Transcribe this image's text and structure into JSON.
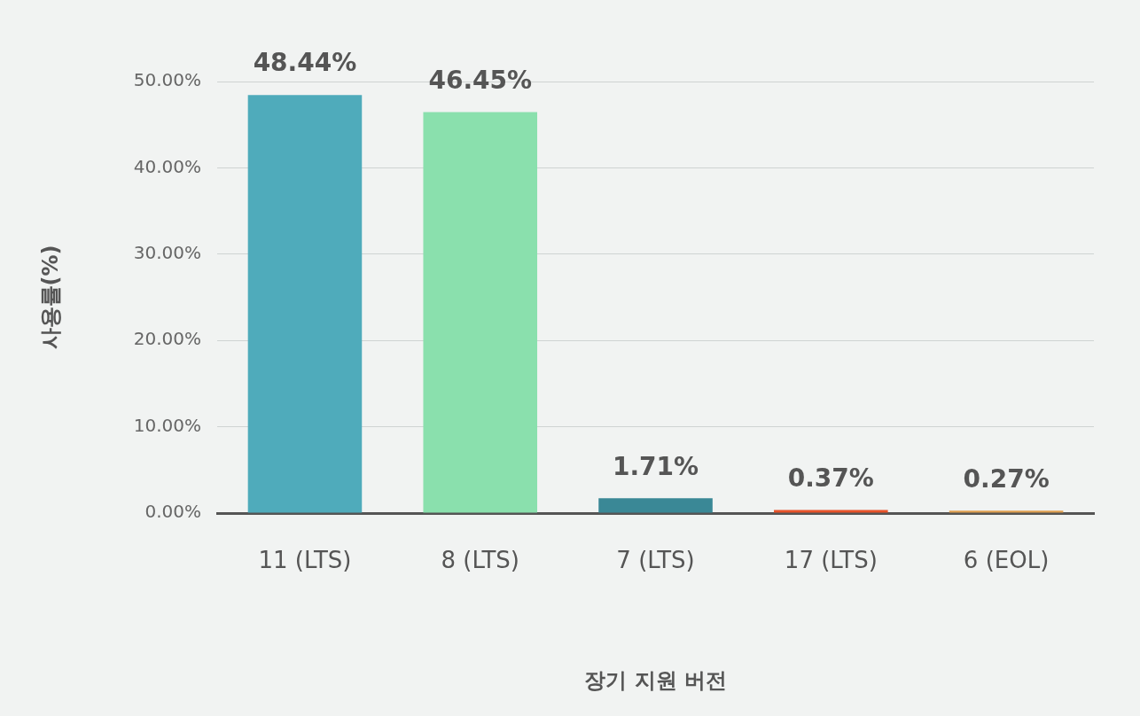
{
  "chart_data": {
    "type": "bar",
    "xlabel": "장기 지원 버전",
    "ylabel": "사용률(%)",
    "categories": [
      "11 (LTS)",
      "8 (LTS)",
      "7 (LTS)",
      "17 (LTS)",
      "6 (EOL)"
    ],
    "values": [
      48.44,
      46.45,
      1.71,
      0.37,
      0.27
    ],
    "colors": [
      "#4fabbb",
      "#8ae0ad",
      "#3a8896",
      "#e8532a",
      "#e0a050"
    ],
    "value_labels": [
      "48.44%",
      "46.45%",
      "1.71%",
      "0.37%",
      "0.27%"
    ],
    "ylim": [
      0,
      50
    ],
    "yticks": [
      {
        "value": 0,
        "label": "0.00%"
      },
      {
        "value": 10,
        "label": "10.00%"
      },
      {
        "value": 20,
        "label": "20.00%"
      },
      {
        "value": 30,
        "label": "30.00%"
      },
      {
        "value": 40,
        "label": "40.00%"
      },
      {
        "value": 50,
        "label": "50.00%"
      }
    ],
    "grid": "y",
    "legend": false
  }
}
